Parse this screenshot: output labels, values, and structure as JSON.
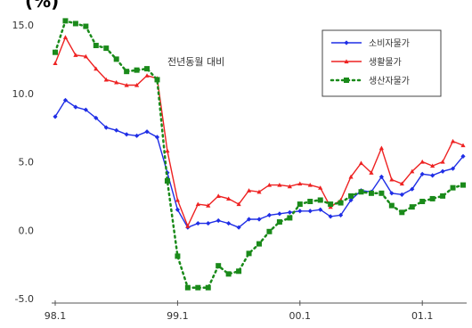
{
  "chart_data": {
    "type": "line",
    "title": "(%)",
    "annotation": "전년동월 대비",
    "x_tick_labels": [
      "98.1",
      "99.1",
      "00.1",
      "01.1"
    ],
    "ylim": [
      -5,
      15
    ],
    "y_ticks": [
      "15.0",
      "10.0",
      "5.0",
      "0.0",
      "-5.0"
    ],
    "y_tick_values": [
      15,
      10,
      5,
      0,
      -5
    ],
    "grid": false,
    "legend_position": "top-right",
    "series": [
      {
        "name": "소비자물가",
        "color": "#1f2ee6",
        "marker": "diamond",
        "line": "solid",
        "values": [
          8.3,
          9.5,
          9.0,
          8.8,
          8.2,
          7.5,
          7.3,
          7.0,
          6.9,
          7.2,
          6.8,
          4.2,
          1.5,
          0.2,
          0.5,
          0.5,
          0.7,
          0.5,
          0.2,
          0.8,
          0.8,
          1.1,
          1.2,
          1.3,
          1.4,
          1.4,
          1.5,
          1.0,
          1.1,
          2.2,
          2.9,
          2.8,
          3.9,
          2.7,
          2.6,
          3.0,
          4.1,
          4.0,
          4.3,
          4.5,
          5.4
        ]
      },
      {
        "name": "생활물가",
        "color": "#ee2222",
        "marker": "triangle",
        "line": "solid",
        "values": [
          12.2,
          14.1,
          12.8,
          12.7,
          11.8,
          11.0,
          10.8,
          10.6,
          10.6,
          11.3,
          11.1,
          5.8,
          2.2,
          0.3,
          1.9,
          1.8,
          2.5,
          2.3,
          1.9,
          2.9,
          2.8,
          3.3,
          3.3,
          3.2,
          3.4,
          3.3,
          3.1,
          1.7,
          2.2,
          3.9,
          4.9,
          4.2,
          6.0,
          3.7,
          3.4,
          4.3,
          5.0,
          4.7,
          5.0,
          6.5,
          6.2
        ]
      },
      {
        "name": "생산자물가",
        "color": "#1a8a1a",
        "marker": "square",
        "line": "dotted",
        "values": [
          13.0,
          15.3,
          15.1,
          14.9,
          13.5,
          13.3,
          12.5,
          11.6,
          11.7,
          11.8,
          11.0,
          3.6,
          -1.9,
          -4.2,
          -4.2,
          -4.2,
          -2.6,
          -3.2,
          -3.0,
          -1.7,
          -1.0,
          -0.1,
          0.6,
          0.9,
          1.9,
          2.1,
          2.2,
          1.9,
          2.0,
          2.5,
          2.8,
          2.7,
          2.7,
          1.8,
          1.3,
          1.7,
          2.1,
          2.3,
          2.5,
          3.1,
          3.3
        ]
      }
    ]
  }
}
